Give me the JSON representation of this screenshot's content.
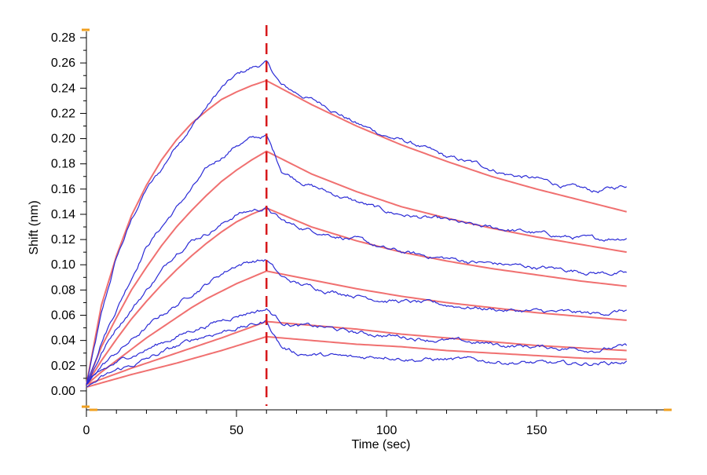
{
  "chart_data": {
    "type": "line",
    "title": "",
    "xlabel": "Time (sec)",
    "ylabel": "Shift (nm)",
    "xlim": [
      0,
      195
    ],
    "ylim": [
      -0.015,
      0.285
    ],
    "x_ticks": [
      0,
      50,
      100,
      150
    ],
    "x_tick_labels": [
      "0",
      "50",
      "100",
      "150"
    ],
    "x_minor_step": 10,
    "y_ticks": [
      0.0,
      0.02,
      0.04,
      0.06,
      0.08,
      0.1,
      0.12,
      0.14,
      0.16,
      0.18,
      0.2,
      0.22,
      0.24,
      0.26,
      0.28
    ],
    "y_tick_labels": [
      "0.00",
      "0.02",
      "0.04",
      "0.06",
      "0.08",
      "0.10",
      "0.12",
      "0.14",
      "0.16",
      "0.18",
      "0.20",
      "0.22",
      "0.24",
      "0.26",
      "0.28"
    ],
    "y_minor_step": 0.01,
    "grid": false,
    "legend": "none",
    "annotations": [
      {
        "type": "vertical-dashed-line",
        "x": 60,
        "color": "#d7191c",
        "meaning": "association/dissociation boundary"
      }
    ],
    "colors": {
      "measured": "#2b2bd6",
      "fit": "#f07070",
      "marker": "#d7191c",
      "corner_markers": "#f0a020"
    },
    "curves": [
      {
        "name": "measured-1",
        "kind": "measured",
        "x": [
          0,
          5,
          10,
          15,
          20,
          25,
          30,
          35,
          40,
          45,
          50,
          55,
          60,
          65,
          70,
          80,
          90,
          100,
          110,
          120,
          130,
          140,
          150,
          160,
          170,
          180
        ],
        "y": [
          0.005,
          0.06,
          0.105,
          0.135,
          0.16,
          0.175,
          0.195,
          0.21,
          0.225,
          0.24,
          0.25,
          0.256,
          0.26,
          0.242,
          0.236,
          0.226,
          0.212,
          0.202,
          0.195,
          0.185,
          0.18,
          0.172,
          0.168,
          0.162,
          0.158,
          0.163
        ]
      },
      {
        "name": "fit-1",
        "kind": "fit",
        "x": [
          0,
          5,
          10,
          15,
          20,
          25,
          30,
          35,
          40,
          45,
          50,
          55,
          60,
          75,
          90,
          105,
          120,
          135,
          150,
          165,
          180
        ],
        "y": [
          0.005,
          0.068,
          0.107,
          0.139,
          0.163,
          0.183,
          0.199,
          0.212,
          0.222,
          0.231,
          0.237,
          0.242,
          0.246,
          0.227,
          0.21,
          0.195,
          0.182,
          0.17,
          0.16,
          0.151,
          0.142
        ]
      },
      {
        "name": "measured-2",
        "kind": "measured",
        "x": [
          0,
          5,
          10,
          15,
          20,
          25,
          30,
          35,
          40,
          45,
          50,
          55,
          60,
          65,
          70,
          80,
          90,
          100,
          110,
          120,
          130,
          140,
          150,
          160,
          170,
          180
        ],
        "y": [
          0.005,
          0.04,
          0.065,
          0.09,
          0.115,
          0.13,
          0.145,
          0.16,
          0.175,
          0.185,
          0.195,
          0.2,
          0.202,
          0.175,
          0.168,
          0.158,
          0.15,
          0.142,
          0.138,
          0.135,
          0.13,
          0.128,
          0.125,
          0.122,
          0.12,
          0.122
        ]
      },
      {
        "name": "fit-2",
        "kind": "fit",
        "x": [
          0,
          5,
          10,
          15,
          20,
          25,
          30,
          35,
          40,
          45,
          50,
          55,
          60,
          75,
          90,
          105,
          120,
          135,
          150,
          165,
          180
        ],
        "y": [
          0.005,
          0.035,
          0.058,
          0.08,
          0.098,
          0.115,
          0.13,
          0.143,
          0.155,
          0.166,
          0.175,
          0.183,
          0.19,
          0.172,
          0.158,
          0.146,
          0.137,
          0.129,
          0.122,
          0.116,
          0.11
        ]
      },
      {
        "name": "measured-3",
        "kind": "measured",
        "x": [
          0,
          5,
          10,
          15,
          20,
          25,
          30,
          35,
          40,
          45,
          50,
          55,
          60,
          65,
          70,
          80,
          90,
          100,
          110,
          120,
          130,
          140,
          150,
          160,
          170,
          180
        ],
        "y": [
          0.005,
          0.03,
          0.05,
          0.065,
          0.08,
          0.095,
          0.11,
          0.12,
          0.125,
          0.132,
          0.14,
          0.143,
          0.145,
          0.135,
          0.13,
          0.125,
          0.12,
          0.112,
          0.108,
          0.105,
          0.102,
          0.1,
          0.098,
          0.096,
          0.094,
          0.093
        ]
      },
      {
        "name": "fit-3",
        "kind": "fit",
        "x": [
          0,
          5,
          10,
          15,
          20,
          25,
          30,
          35,
          40,
          45,
          50,
          55,
          60,
          75,
          90,
          105,
          120,
          135,
          150,
          165,
          180
        ],
        "y": [
          0.005,
          0.024,
          0.041,
          0.057,
          0.071,
          0.084,
          0.096,
          0.107,
          0.117,
          0.126,
          0.134,
          0.14,
          0.145,
          0.13,
          0.119,
          0.11,
          0.103,
          0.097,
          0.092,
          0.087,
          0.083
        ]
      },
      {
        "name": "measured-4",
        "kind": "measured",
        "x": [
          0,
          5,
          10,
          15,
          20,
          25,
          30,
          35,
          40,
          45,
          50,
          55,
          60,
          65,
          70,
          80,
          90,
          100,
          110,
          120,
          130,
          140,
          150,
          160,
          170,
          180
        ],
        "y": [
          0.005,
          0.02,
          0.03,
          0.04,
          0.05,
          0.06,
          0.068,
          0.077,
          0.085,
          0.093,
          0.1,
          0.103,
          0.104,
          0.09,
          0.085,
          0.08,
          0.076,
          0.072,
          0.07,
          0.068,
          0.066,
          0.064,
          0.063,
          0.062,
          0.061,
          0.064
        ]
      },
      {
        "name": "fit-4",
        "kind": "fit",
        "x": [
          0,
          5,
          10,
          15,
          20,
          25,
          30,
          35,
          40,
          45,
          50,
          55,
          60,
          75,
          90,
          105,
          120,
          135,
          150,
          165,
          180
        ],
        "y": [
          0.005,
          0.015,
          0.024,
          0.033,
          0.042,
          0.05,
          0.058,
          0.066,
          0.073,
          0.079,
          0.085,
          0.09,
          0.095,
          0.088,
          0.081,
          0.075,
          0.07,
          0.066,
          0.062,
          0.059,
          0.056
        ]
      },
      {
        "name": "measured-5",
        "kind": "measured",
        "x": [
          0,
          5,
          10,
          15,
          20,
          25,
          30,
          35,
          40,
          45,
          50,
          55,
          60,
          65,
          70,
          80,
          90,
          100,
          110,
          120,
          130,
          140,
          150,
          160,
          170,
          180
        ],
        "y": [
          0.005,
          0.015,
          0.022,
          0.028,
          0.033,
          0.038,
          0.043,
          0.048,
          0.052,
          0.056,
          0.06,
          0.063,
          0.065,
          0.055,
          0.052,
          0.05,
          0.046,
          0.044,
          0.042,
          0.04,
          0.038,
          0.036,
          0.035,
          0.034,
          0.033,
          0.035
        ]
      },
      {
        "name": "fit-5",
        "kind": "fit",
        "x": [
          0,
          15,
          30,
          45,
          60,
          75,
          90,
          105,
          120,
          135,
          150,
          165,
          180
        ],
        "y": [
          0.005,
          0.018,
          0.03,
          0.042,
          0.055,
          0.052,
          0.049,
          0.045,
          0.042,
          0.039,
          0.036,
          0.034,
          0.032
        ]
      },
      {
        "name": "measured-6",
        "kind": "measured",
        "x": [
          0,
          5,
          10,
          15,
          20,
          25,
          30,
          35,
          40,
          45,
          50,
          55,
          60,
          65,
          70,
          80,
          90,
          100,
          110,
          120,
          130,
          140,
          150,
          160,
          170,
          180
        ],
        "y": [
          0.003,
          0.01,
          0.016,
          0.02,
          0.025,
          0.03,
          0.035,
          0.04,
          0.044,
          0.047,
          0.05,
          0.052,
          0.055,
          0.035,
          0.03,
          0.028,
          0.026,
          0.028,
          0.025,
          0.025,
          0.024,
          0.023,
          0.022,
          0.021,
          0.022,
          0.023
        ]
      },
      {
        "name": "fit-6",
        "kind": "fit",
        "x": [
          0,
          15,
          30,
          45,
          60,
          75,
          90,
          105,
          120,
          135,
          150,
          165,
          180
        ],
        "y": [
          0.003,
          0.013,
          0.022,
          0.032,
          0.043,
          0.04,
          0.037,
          0.035,
          0.032,
          0.03,
          0.028,
          0.026,
          0.025
        ]
      }
    ]
  }
}
